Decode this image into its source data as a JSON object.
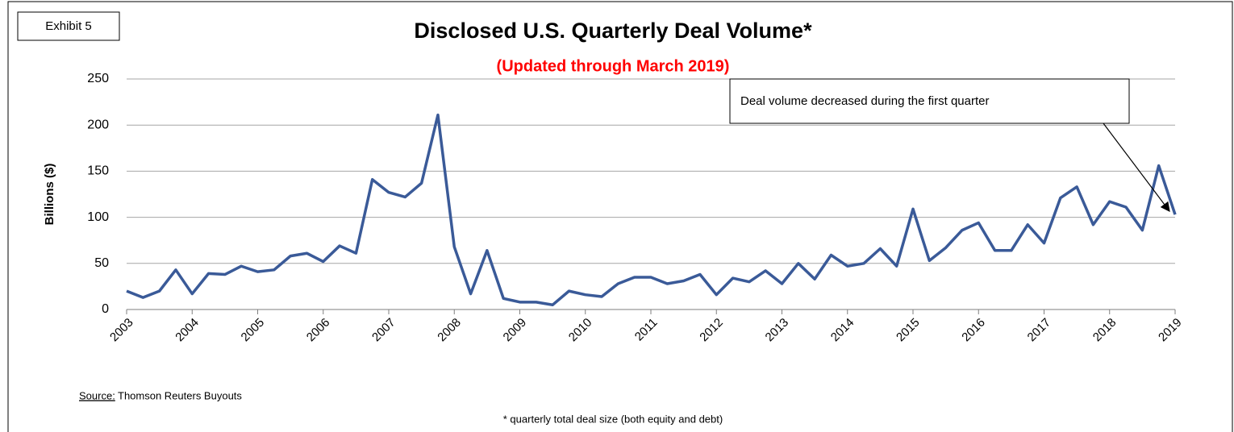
{
  "chart_data": {
    "type": "line",
    "exhibit": "Exhibit 5",
    "title": "Disclosed U.S. Quarterly Deal Volume*",
    "subtitle": "(Updated through March 2019)",
    "y_label": "Billions ($)",
    "annotation": "Deal volume  decreased during the first quarter",
    "source_label": "Source:",
    "source": "Thomson Reuters Buyouts",
    "footnote": "* quarterly total deal size (both equity and debt)",
    "color": "#3a5a98",
    "x": [
      2003,
      2003.25,
      2003.5,
      2003.75,
      2004,
      2004.25,
      2004.5,
      2004.75,
      2005,
      2005.25,
      2005.5,
      2005.75,
      2006,
      2006.25,
      2006.5,
      2006.75,
      2007,
      2007.25,
      2007.5,
      2007.75,
      2008,
      2008.25,
      2008.5,
      2008.75,
      2009,
      2009.25,
      2009.5,
      2009.75,
      2010,
      2010.25,
      2010.5,
      2010.75,
      2011,
      2011.25,
      2011.5,
      2011.75,
      2012,
      2012.25,
      2012.5,
      2012.75,
      2013,
      2013.25,
      2013.5,
      2013.75,
      2014,
      2014.25,
      2014.5,
      2014.75,
      2015,
      2015.25,
      2015.5,
      2015.75,
      2016,
      2016.25,
      2016.5,
      2016.75,
      2017,
      2017.25,
      2017.5,
      2017.75,
      2018,
      2018.25,
      2018.5,
      2018.75,
      2019
    ],
    "values": [
      20,
      13,
      20,
      43,
      17,
      39,
      38,
      47,
      41,
      43,
      58,
      61,
      52,
      69,
      61,
      141,
      127,
      122,
      137,
      211,
      68,
      17,
      64,
      12,
      8,
      8,
      5,
      20,
      16,
      14,
      28,
      35,
      35,
      28,
      31,
      38,
      16,
      34,
      30,
      42,
      28,
      50,
      33,
      59,
      47,
      50,
      66,
      47,
      109,
      53,
      67,
      86,
      94,
      64,
      64,
      92,
      72,
      121,
      133,
      92,
      117,
      111,
      86,
      156,
      103
    ],
    "xlim": [
      2003,
      2019
    ],
    "xticks": [
      2003,
      2004,
      2005,
      2006,
      2007,
      2008,
      2009,
      2010,
      2011,
      2012,
      2013,
      2014,
      2015,
      2016,
      2017,
      2018,
      2019
    ],
    "ylim": [
      0,
      250
    ],
    "yticks": [
      0,
      50,
      100,
      150,
      200,
      250
    ],
    "grid": true
  }
}
